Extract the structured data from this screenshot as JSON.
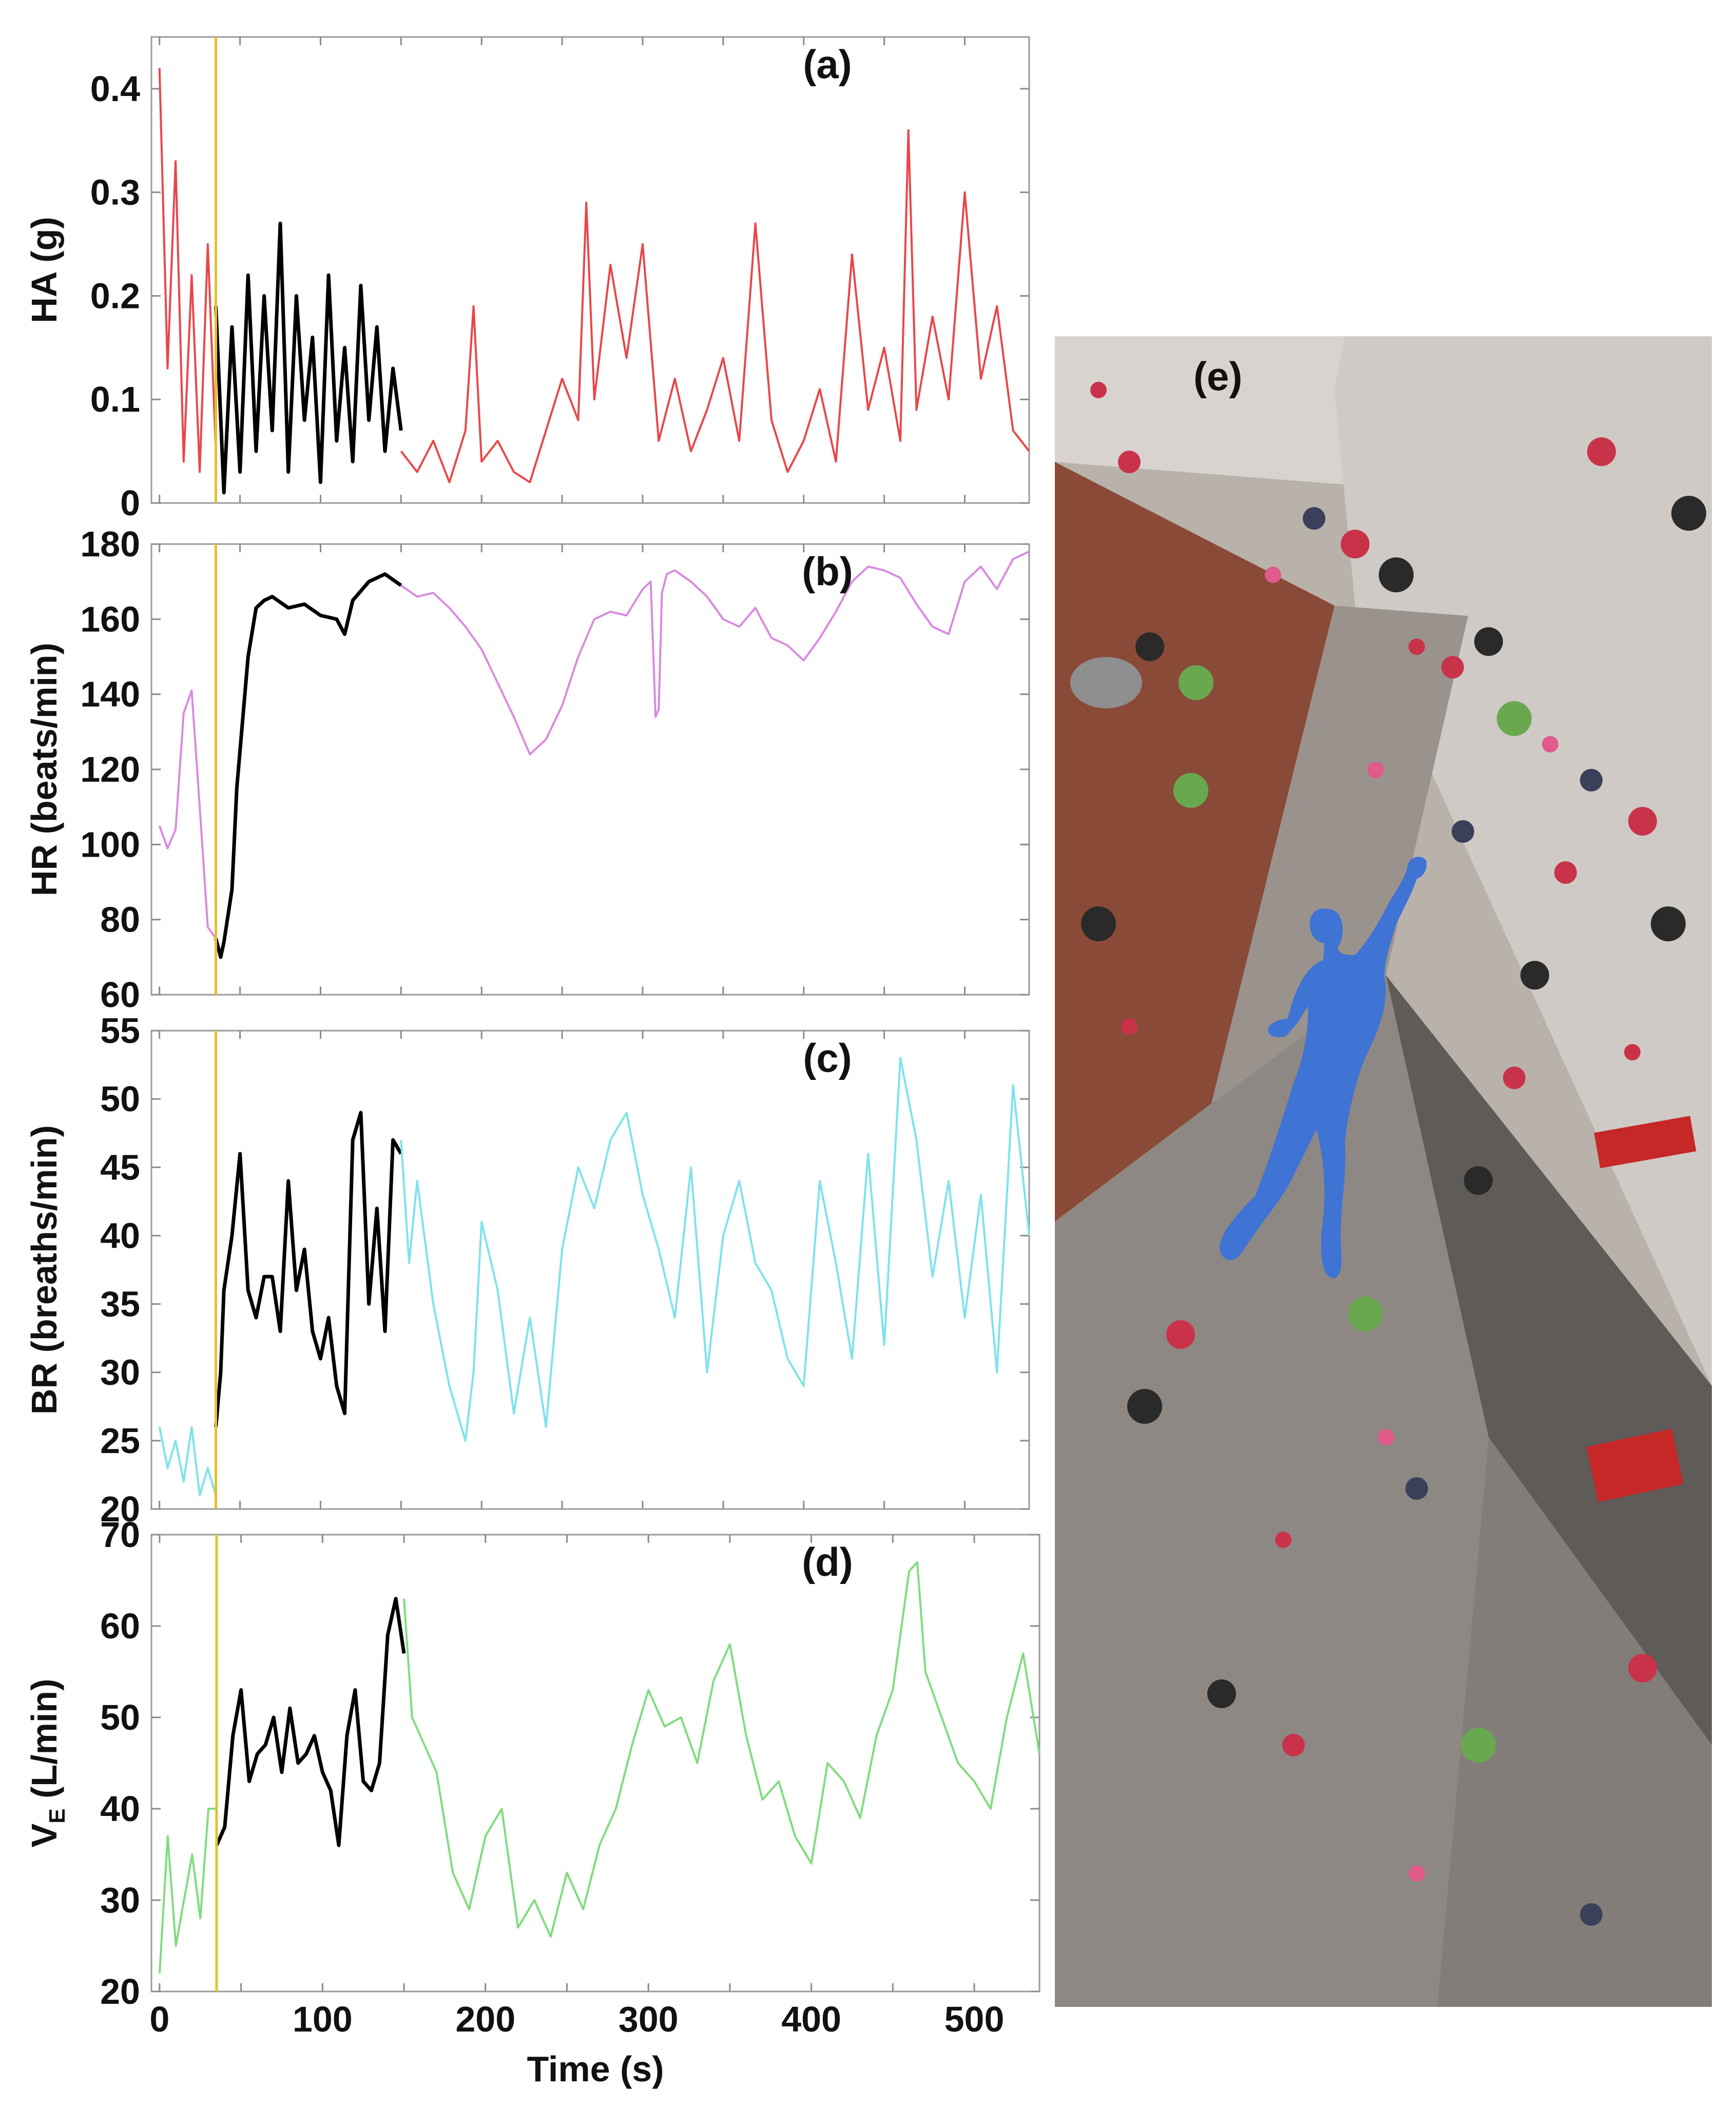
{
  "chart_data": [
    {
      "type": "line",
      "panel": "(a)",
      "ylabel": "HA (g)",
      "ylim": [
        0,
        0.45
      ],
      "yticks": [
        0,
        0.1,
        0.2,
        0.3,
        0.4
      ],
      "ytick_labels": [
        "0",
        "0.1",
        "0.2",
        "0.3",
        "0.4"
      ],
      "xlim": [
        -5,
        540
      ],
      "marker_x": 35,
      "series": [
        {
          "color": "#e8474a",
          "x": [
            0,
            5,
            10,
            15,
            20,
            25,
            30,
            35
          ],
          "y": [
            0.42,
            0.13,
            0.33,
            0.04,
            0.22,
            0.03,
            0.25,
            0.05
          ]
        },
        {
          "color": "#000000",
          "x": [
            35,
            40,
            45,
            50,
            55,
            60,
            65,
            70,
            75,
            80,
            85,
            90,
            95,
            100,
            105,
            110,
            115,
            120,
            125,
            130,
            135,
            140,
            145,
            150
          ],
          "y": [
            0.19,
            0.01,
            0.17,
            0.03,
            0.22,
            0.05,
            0.2,
            0.07,
            0.27,
            0.03,
            0.2,
            0.08,
            0.16,
            0.02,
            0.22,
            0.06,
            0.15,
            0.04,
            0.21,
            0.08,
            0.17,
            0.05,
            0.13,
            0.07
          ]
        },
        {
          "color": "#e8474a",
          "x": [
            150,
            160,
            170,
            180,
            190,
            195,
            200,
            210,
            220,
            230,
            240,
            250,
            260,
            265,
            270,
            280,
            290,
            300,
            310,
            320,
            330,
            340,
            350,
            360,
            370,
            380,
            390,
            400,
            410,
            420,
            430,
            440,
            450,
            460,
            465,
            470,
            480,
            490,
            500,
            510,
            520,
            530,
            540
          ],
          "y": [
            0.05,
            0.03,
            0.06,
            0.02,
            0.07,
            0.19,
            0.04,
            0.06,
            0.03,
            0.02,
            0.07,
            0.12,
            0.08,
            0.29,
            0.1,
            0.23,
            0.14,
            0.25,
            0.06,
            0.12,
            0.05,
            0.09,
            0.14,
            0.06,
            0.27,
            0.08,
            0.03,
            0.06,
            0.11,
            0.04,
            0.24,
            0.09,
            0.15,
            0.06,
            0.36,
            0.09,
            0.18,
            0.1,
            0.3,
            0.12,
            0.19,
            0.07,
            0.05
          ]
        }
      ]
    },
    {
      "type": "line",
      "panel": "(b)",
      "ylabel": "HR (beats/min)",
      "ylim": [
        60,
        180
      ],
      "yticks": [
        60,
        80,
        100,
        120,
        140,
        160,
        180
      ],
      "ytick_labels": [
        "60",
        "80",
        "100",
        "120",
        "140",
        "160",
        "180"
      ],
      "xlim": [
        -5,
        540
      ],
      "marker_x": 35,
      "series": [
        {
          "color": "#d98ae0",
          "x": [
            0,
            5,
            10,
            15,
            20,
            25,
            30,
            35
          ],
          "y": [
            105,
            99,
            104,
            135,
            141,
            110,
            78,
            75
          ]
        },
        {
          "color": "#000000",
          "x": [
            35,
            38,
            40,
            45,
            48,
            50,
            55,
            60,
            65,
            70,
            80,
            90,
            100,
            110,
            115,
            120,
            130,
            140,
            150
          ],
          "y": [
            75,
            70,
            74,
            88,
            115,
            125,
            150,
            163,
            165,
            166,
            163,
            164,
            161,
            160,
            156,
            165,
            170,
            172,
            169
          ]
        },
        {
          "color": "#d98ae0",
          "x": [
            150,
            160,
            170,
            180,
            190,
            200,
            210,
            220,
            230,
            240,
            250,
            260,
            270,
            280,
            290,
            300,
            305,
            308,
            310,
            312,
            315,
            320,
            330,
            340,
            350,
            360,
            370,
            380,
            390,
            400,
            410,
            420,
            430,
            440,
            450,
            460,
            470,
            480,
            490,
            500,
            510,
            520,
            530,
            540
          ],
          "y": [
            169,
            166,
            167,
            163,
            158,
            152,
            143,
            134,
            124,
            128,
            137,
            150,
            160,
            162,
            161,
            168,
            170,
            134,
            136,
            167,
            172,
            173,
            170,
            166,
            160,
            158,
            163,
            155,
            153,
            149,
            155,
            162,
            170,
            174,
            173,
            171,
            164,
            158,
            156,
            170,
            174,
            168,
            176,
            178
          ]
        }
      ]
    },
    {
      "type": "line",
      "panel": "(c)",
      "ylabel": "BR (breaths/min)",
      "ylim": [
        20,
        55
      ],
      "yticks": [
        20,
        25,
        30,
        35,
        40,
        45,
        50,
        55
      ],
      "ytick_labels": [
        "20",
        "25",
        "30",
        "35",
        "40",
        "45",
        "50",
        "55"
      ],
      "xlim": [
        -5,
        540
      ],
      "marker_x": 35,
      "series": [
        {
          "color": "#7ee3ea",
          "x": [
            0,
            5,
            10,
            15,
            20,
            25,
            30,
            35
          ],
          "y": [
            26,
            23,
            25,
            22,
            26,
            21,
            23,
            21
          ]
        },
        {
          "color": "#000000",
          "x": [
            35,
            38,
            40,
            45,
            50,
            55,
            60,
            65,
            70,
            75,
            80,
            85,
            90,
            95,
            100,
            105,
            110,
            115,
            120,
            125,
            130,
            135,
            140,
            145,
            150
          ],
          "y": [
            26,
            30,
            36,
            40,
            46,
            36,
            34,
            37,
            37,
            33,
            44,
            36,
            39,
            33,
            31,
            34,
            29,
            27,
            47,
            49,
            35,
            42,
            33,
            47,
            46
          ]
        },
        {
          "color": "#7ee3ea",
          "x": [
            150,
            155,
            160,
            170,
            180,
            190,
            195,
            200,
            210,
            220,
            230,
            240,
            250,
            260,
            270,
            280,
            290,
            300,
            310,
            320,
            330,
            340,
            350,
            360,
            370,
            380,
            390,
            400,
            410,
            420,
            430,
            440,
            450,
            460,
            470,
            480,
            490,
            500,
            510,
            520,
            530,
            540
          ],
          "y": [
            47,
            38,
            44,
            35,
            29,
            25,
            30,
            41,
            36,
            27,
            34,
            26,
            39,
            45,
            42,
            47,
            49,
            43,
            39,
            34,
            45,
            30,
            40,
            44,
            38,
            36,
            31,
            29,
            44,
            38,
            31,
            46,
            32,
            53,
            47,
            37,
            44,
            34,
            43,
            30,
            51,
            40
          ]
        }
      ]
    },
    {
      "type": "line",
      "panel": "(d)",
      "ylabel": "V_E (L/min)",
      "ylabel_main": "V",
      "ylabel_sub": "E",
      "ylabel_rest": " (L/min)",
      "xlabel": "Time (s)",
      "ylim": [
        20,
        70
      ],
      "yticks": [
        20,
        30,
        40,
        50,
        60,
        70
      ],
      "ytick_labels": [
        "20",
        "30",
        "40",
        "50",
        "60",
        "70"
      ],
      "xlim": [
        -5,
        540
      ],
      "xticks": [
        0,
        100,
        200,
        300,
        400,
        500
      ],
      "xtick_labels": [
        "0",
        "100",
        "200",
        "300",
        "400",
        "500"
      ],
      "marker_x": 35,
      "series": [
        {
          "color": "#7fdc7f",
          "x": [
            0,
            5,
            10,
            15,
            20,
            25,
            30,
            35
          ],
          "y": [
            22,
            37,
            25,
            30,
            35,
            28,
            40,
            40
          ]
        },
        {
          "color": "#000000",
          "x": [
            35,
            40,
            45,
            50,
            55,
            60,
            65,
            70,
            75,
            80,
            85,
            90,
            95,
            100,
            105,
            110,
            115,
            120,
            125,
            130,
            135,
            140,
            145,
            150
          ],
          "y": [
            36,
            38,
            48,
            53,
            43,
            46,
            47,
            50,
            44,
            51,
            45,
            46,
            48,
            44,
            42,
            36,
            48,
            53,
            43,
            42,
            45,
            59,
            63,
            57
          ]
        },
        {
          "color": "#7fdc7f",
          "x": [
            150,
            155,
            160,
            170,
            180,
            190,
            200,
            210,
            220,
            230,
            240,
            250,
            260,
            270,
            280,
            290,
            300,
            310,
            320,
            330,
            340,
            350,
            360,
            370,
            380,
            390,
            400,
            410,
            420,
            430,
            440,
            450,
            460,
            465,
            470,
            480,
            490,
            500,
            510,
            520,
            530,
            540
          ],
          "y": [
            63,
            50,
            48,
            44,
            33,
            29,
            37,
            40,
            27,
            30,
            26,
            33,
            29,
            36,
            40,
            47,
            53,
            49,
            50,
            45,
            54,
            58,
            48,
            41,
            43,
            37,
            34,
            45,
            43,
            39,
            48,
            53,
            66,
            67,
            55,
            50,
            45,
            43,
            40,
            50,
            57,
            46
          ]
        }
      ]
    }
  ],
  "photo": {
    "label": "(e)",
    "description_icon": "climbing-wall-photo"
  }
}
